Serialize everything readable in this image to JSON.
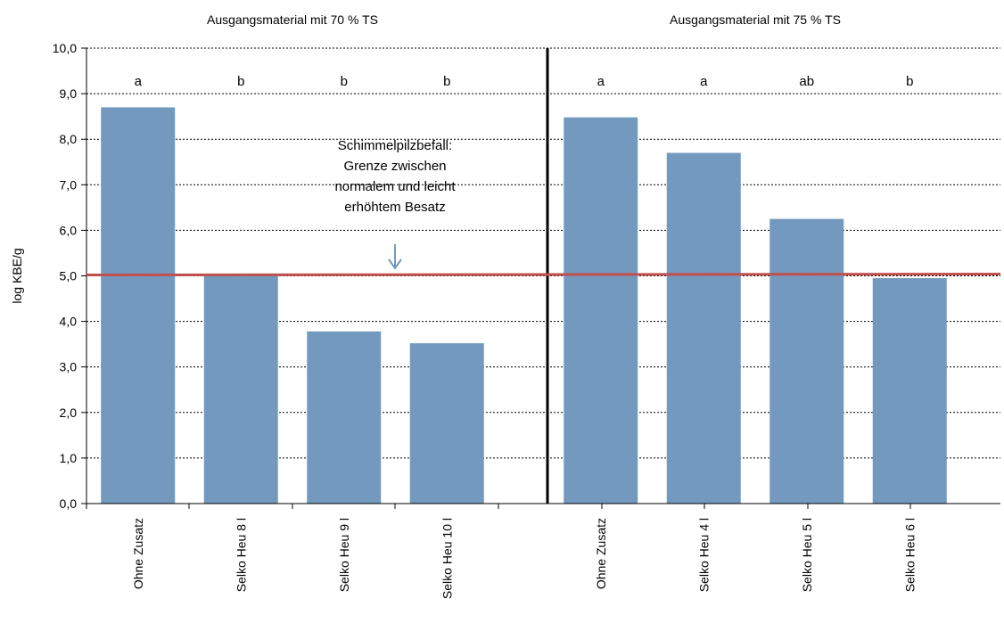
{
  "chart_data": {
    "type": "bar",
    "ylabel": "log KBE/g",
    "ylim": [
      0,
      10
    ],
    "y_ticks": [
      "0,0",
      "1,0",
      "2,0",
      "3,0",
      "4,0",
      "5,0",
      "6,0",
      "7,0",
      "8,0",
      "9,0",
      "10,0"
    ],
    "grid": "horizontal dotted",
    "groups": [
      {
        "title": "Ausgangsmaterial mit 70 % TS",
        "categories": [
          "Ohne Zusatz",
          "Selko Heu 8 l",
          "Selko Heu 9 l",
          "Selko Heu 10 l"
        ],
        "values": [
          8.7,
          5.0,
          3.78,
          3.52
        ],
        "significance": [
          "a",
          "b",
          "b",
          "b"
        ]
      },
      {
        "title": "Ausgangsmaterial mit 75 % TS",
        "categories": [
          "Ohne Zusatz",
          "Selko Heu 4 l",
          "Selko Heu 5 l",
          "Selko Heu 6 l"
        ],
        "values": [
          8.48,
          7.7,
          6.25,
          4.95
        ],
        "significance": [
          "a",
          "a",
          "ab",
          "b"
        ]
      }
    ],
    "threshold": {
      "value": 5.02,
      "annotation_lines": [
        "Schimmelpilzbefall:",
        "Grenze zwischen",
        "normalem und leicht",
        "erhöhtem Besatz"
      ]
    }
  },
  "colors": {
    "bar": "#7399be",
    "threshold_line": "#c0504d",
    "arrow": "#7399be",
    "grid": "#000000",
    "divider": "#000000"
  }
}
